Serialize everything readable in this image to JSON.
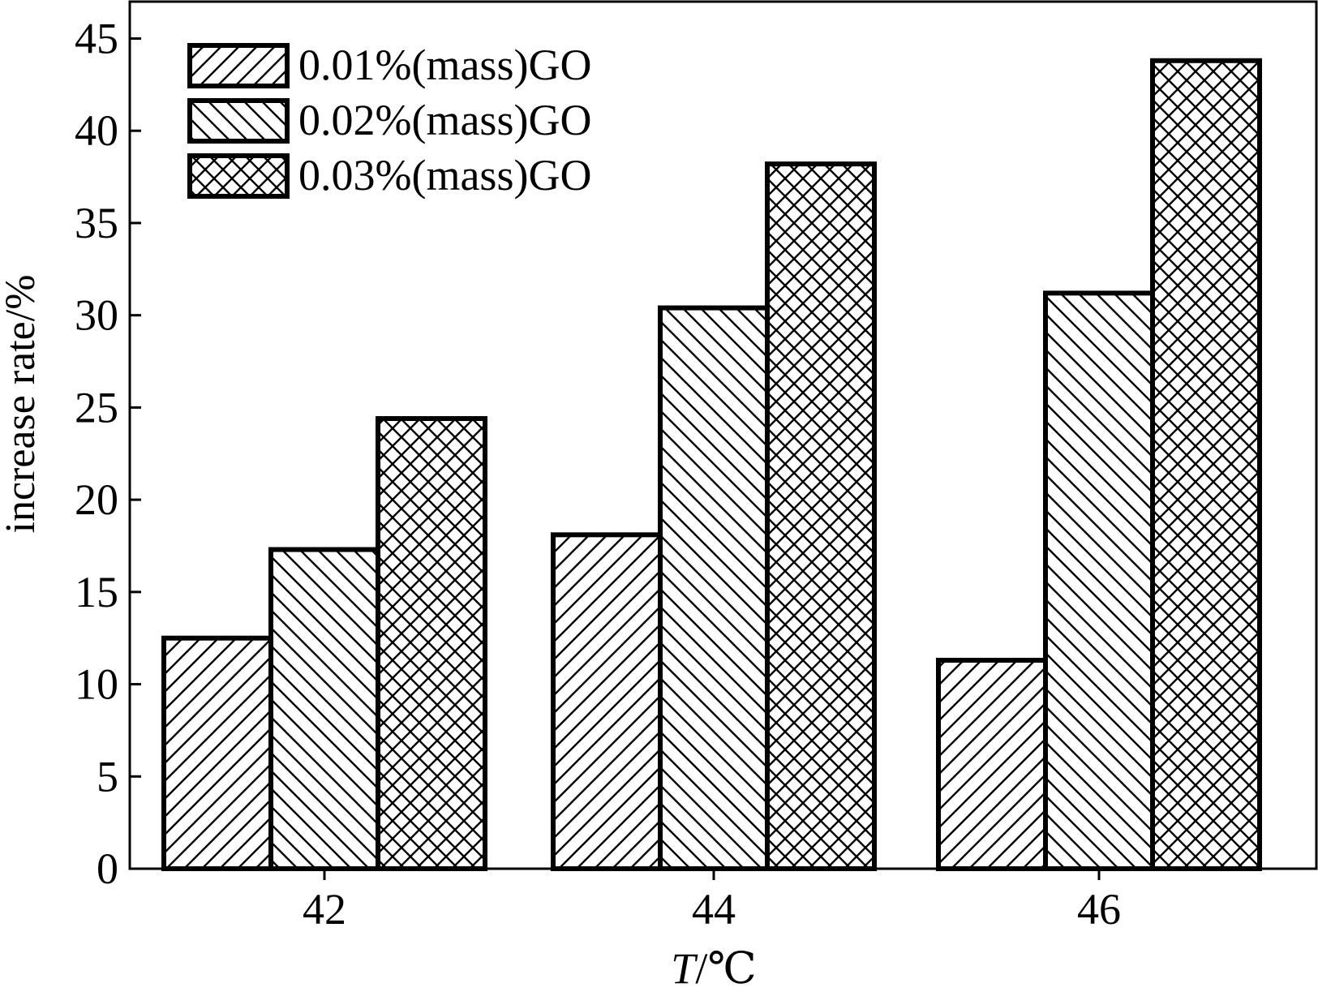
{
  "chart_data": {
    "type": "bar",
    "title": "",
    "xlabel_symbol": "T",
    "xlabel_unit": "/℃",
    "ylabel": "increase rate/%",
    "categories": [
      "42",
      "44",
      "46"
    ],
    "series": [
      {
        "name": "0.01%(mass)GO",
        "values": [
          12.5,
          18.1,
          11.3
        ],
        "pattern": "diag-right"
      },
      {
        "name": "0.02%(mass)GO",
        "values": [
          17.3,
          30.4,
          31.2
        ],
        "pattern": "diag-left"
      },
      {
        "name": "0.03%(mass)GO",
        "values": [
          24.4,
          38.2,
          43.8
        ],
        "pattern": "crosshatch"
      }
    ],
    "ylim": [
      0,
      47
    ],
    "yticks": [
      0,
      5,
      10,
      15,
      20,
      25,
      30,
      35,
      40,
      45
    ],
    "grid": false,
    "legend_position": "top-left",
    "colors": {
      "fill": "#ffffff",
      "stroke": "#000000"
    }
  }
}
